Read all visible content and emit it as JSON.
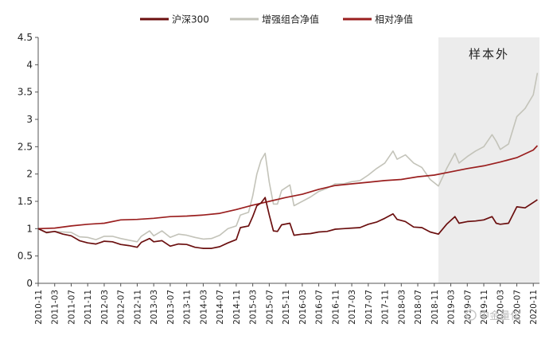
{
  "chart_data": {
    "type": "line",
    "title": "",
    "xlabel": "",
    "ylabel": "",
    "ylim": [
      0,
      4.5
    ],
    "yticks": [
      "0",
      "0.5",
      "1",
      "1.5",
      "2",
      "2.5",
      "3",
      "3.5",
      "4",
      "4.5"
    ],
    "xticks": [
      "2010-11",
      "2011-03",
      "2011-07",
      "2011-11",
      "2012-03",
      "2012-07",
      "2012-11",
      "2013-03",
      "2013-07",
      "2013-11",
      "2014-03",
      "2014-07",
      "2014-11",
      "2015-03",
      "2015-07",
      "2015-11",
      "2016-03",
      "2016-07",
      "2016-11",
      "2017-03",
      "2017-07",
      "2017-11",
      "2018-03",
      "2018-07",
      "2018-11",
      "2019-03",
      "2019-07",
      "2019-11",
      "2020-03",
      "2020-07",
      "2020-11"
    ],
    "legend_position": "top",
    "grid": false,
    "shaded_region": {
      "from": "2018-12",
      "to": "2020-12",
      "label": "样本外"
    },
    "series": [
      {
        "name": "沪深300",
        "color": "#6b0f0f",
        "points": [
          [
            "2010-11",
            1.0
          ],
          [
            "2011-01",
            0.93
          ],
          [
            "2011-03",
            0.95
          ],
          [
            "2011-05",
            0.9
          ],
          [
            "2011-07",
            0.87
          ],
          [
            "2011-09",
            0.78
          ],
          [
            "2011-11",
            0.74
          ],
          [
            "2012-01",
            0.72
          ],
          [
            "2012-03",
            0.77
          ],
          [
            "2012-05",
            0.76
          ],
          [
            "2012-07",
            0.71
          ],
          [
            "2012-09",
            0.69
          ],
          [
            "2012-11",
            0.66
          ],
          [
            "2012-12",
            0.75
          ],
          [
            "2013-02",
            0.82
          ],
          [
            "2013-03",
            0.76
          ],
          [
            "2013-05",
            0.78
          ],
          [
            "2013-07",
            0.68
          ],
          [
            "2013-09",
            0.72
          ],
          [
            "2013-11",
            0.71
          ],
          [
            "2014-01",
            0.66
          ],
          [
            "2014-03",
            0.64
          ],
          [
            "2014-05",
            0.64
          ],
          [
            "2014-07",
            0.67
          ],
          [
            "2014-09",
            0.74
          ],
          [
            "2014-11",
            0.8
          ],
          [
            "2014-12",
            1.02
          ],
          [
            "2015-02",
            1.05
          ],
          [
            "2015-03",
            1.22
          ],
          [
            "2015-04",
            1.42
          ],
          [
            "2015-05",
            1.47
          ],
          [
            "2015-06",
            1.57
          ],
          [
            "2015-07",
            1.25
          ],
          [
            "2015-08",
            0.96
          ],
          [
            "2015-09",
            0.95
          ],
          [
            "2015-10",
            1.07
          ],
          [
            "2015-12",
            1.1
          ],
          [
            "2016-01",
            0.88
          ],
          [
            "2016-03",
            0.9
          ],
          [
            "2016-05",
            0.91
          ],
          [
            "2016-07",
            0.94
          ],
          [
            "2016-09",
            0.95
          ],
          [
            "2016-11",
            0.99
          ],
          [
            "2017-01",
            1.0
          ],
          [
            "2017-03",
            1.01
          ],
          [
            "2017-05",
            1.02
          ],
          [
            "2017-07",
            1.08
          ],
          [
            "2017-09",
            1.12
          ],
          [
            "2017-11",
            1.19
          ],
          [
            "2018-01",
            1.27
          ],
          [
            "2018-02",
            1.17
          ],
          [
            "2018-04",
            1.13
          ],
          [
            "2018-06",
            1.03
          ],
          [
            "2018-08",
            1.02
          ],
          [
            "2018-10",
            0.94
          ],
          [
            "2018-12",
            0.9
          ],
          [
            "2019-02",
            1.08
          ],
          [
            "2019-04",
            1.22
          ],
          [
            "2019-05",
            1.1
          ],
          [
            "2019-07",
            1.13
          ],
          [
            "2019-09",
            1.14
          ],
          [
            "2019-11",
            1.16
          ],
          [
            "2020-01",
            1.22
          ],
          [
            "2020-02",
            1.1
          ],
          [
            "2020-03",
            1.08
          ],
          [
            "2020-05",
            1.1
          ],
          [
            "2020-07",
            1.4
          ],
          [
            "2020-09",
            1.38
          ],
          [
            "2020-11",
            1.48
          ],
          [
            "2020-12",
            1.53
          ]
        ]
      },
      {
        "name": "增强组合净值",
        "color": "#c3c3b9",
        "points": [
          [
            "2010-11",
            1.0
          ],
          [
            "2011-01",
            0.92
          ],
          [
            "2011-03",
            0.95
          ],
          [
            "2011-05",
            0.94
          ],
          [
            "2011-07",
            0.93
          ],
          [
            "2011-09",
            0.85
          ],
          [
            "2011-11",
            0.84
          ],
          [
            "2012-01",
            0.8
          ],
          [
            "2012-03",
            0.86
          ],
          [
            "2012-05",
            0.86
          ],
          [
            "2012-07",
            0.82
          ],
          [
            "2012-09",
            0.79
          ],
          [
            "2012-11",
            0.76
          ],
          [
            "2012-12",
            0.86
          ],
          [
            "2013-02",
            0.96
          ],
          [
            "2013-03",
            0.87
          ],
          [
            "2013-05",
            0.96
          ],
          [
            "2013-07",
            0.84
          ],
          [
            "2013-09",
            0.9
          ],
          [
            "2013-11",
            0.88
          ],
          [
            "2014-01",
            0.84
          ],
          [
            "2014-03",
            0.81
          ],
          [
            "2014-05",
            0.82
          ],
          [
            "2014-07",
            0.88
          ],
          [
            "2014-09",
            1.0
          ],
          [
            "2014-11",
            1.05
          ],
          [
            "2014-12",
            1.25
          ],
          [
            "2015-02",
            1.3
          ],
          [
            "2015-03",
            1.6
          ],
          [
            "2015-04",
            2.0
          ],
          [
            "2015-05",
            2.25
          ],
          [
            "2015-06",
            2.38
          ],
          [
            "2015-07",
            1.85
          ],
          [
            "2015-08",
            1.45
          ],
          [
            "2015-09",
            1.45
          ],
          [
            "2015-10",
            1.7
          ],
          [
            "2015-12",
            1.8
          ],
          [
            "2016-01",
            1.42
          ],
          [
            "2016-03",
            1.5
          ],
          [
            "2016-05",
            1.58
          ],
          [
            "2016-07",
            1.68
          ],
          [
            "2016-09",
            1.74
          ],
          [
            "2016-11",
            1.82
          ],
          [
            "2017-01",
            1.82
          ],
          [
            "2017-03",
            1.86
          ],
          [
            "2017-05",
            1.88
          ],
          [
            "2017-07",
            1.98
          ],
          [
            "2017-09",
            2.1
          ],
          [
            "2017-11",
            2.2
          ],
          [
            "2018-01",
            2.42
          ],
          [
            "2018-02",
            2.27
          ],
          [
            "2018-04",
            2.35
          ],
          [
            "2018-06",
            2.2
          ],
          [
            "2018-08",
            2.12
          ],
          [
            "2018-10",
            1.9
          ],
          [
            "2018-12",
            1.78
          ],
          [
            "2019-02",
            2.1
          ],
          [
            "2019-04",
            2.38
          ],
          [
            "2019-05",
            2.2
          ],
          [
            "2019-07",
            2.32
          ],
          [
            "2019-09",
            2.42
          ],
          [
            "2019-11",
            2.5
          ],
          [
            "2020-01",
            2.72
          ],
          [
            "2020-02",
            2.6
          ],
          [
            "2020-03",
            2.45
          ],
          [
            "2020-05",
            2.55
          ],
          [
            "2020-07",
            3.05
          ],
          [
            "2020-09",
            3.2
          ],
          [
            "2020-11",
            3.45
          ],
          [
            "2020-12",
            3.85
          ]
        ]
      },
      {
        "name": "相对净值",
        "color": "#9a1f1f",
        "points": [
          [
            "2010-11",
            1.0
          ],
          [
            "2011-03",
            1.01
          ],
          [
            "2011-07",
            1.05
          ],
          [
            "2011-11",
            1.08
          ],
          [
            "2012-03",
            1.1
          ],
          [
            "2012-07",
            1.16
          ],
          [
            "2012-11",
            1.17
          ],
          [
            "2013-03",
            1.19
          ],
          [
            "2013-07",
            1.22
          ],
          [
            "2013-11",
            1.23
          ],
          [
            "2014-03",
            1.25
          ],
          [
            "2014-07",
            1.28
          ],
          [
            "2014-11",
            1.35
          ],
          [
            "2015-03",
            1.43
          ],
          [
            "2015-07",
            1.5
          ],
          [
            "2015-11",
            1.57
          ],
          [
            "2016-03",
            1.63
          ],
          [
            "2016-07",
            1.72
          ],
          [
            "2016-11",
            1.79
          ],
          [
            "2017-03",
            1.82
          ],
          [
            "2017-07",
            1.85
          ],
          [
            "2017-11",
            1.88
          ],
          [
            "2018-03",
            1.9
          ],
          [
            "2018-07",
            1.95
          ],
          [
            "2018-11",
            1.98
          ],
          [
            "2019-03",
            2.04
          ],
          [
            "2019-07",
            2.1
          ],
          [
            "2019-11",
            2.15
          ],
          [
            "2020-03",
            2.22
          ],
          [
            "2020-07",
            2.3
          ],
          [
            "2020-11",
            2.44
          ],
          [
            "2020-12",
            2.52
          ]
        ]
      }
    ]
  },
  "watermark": "中金量化"
}
